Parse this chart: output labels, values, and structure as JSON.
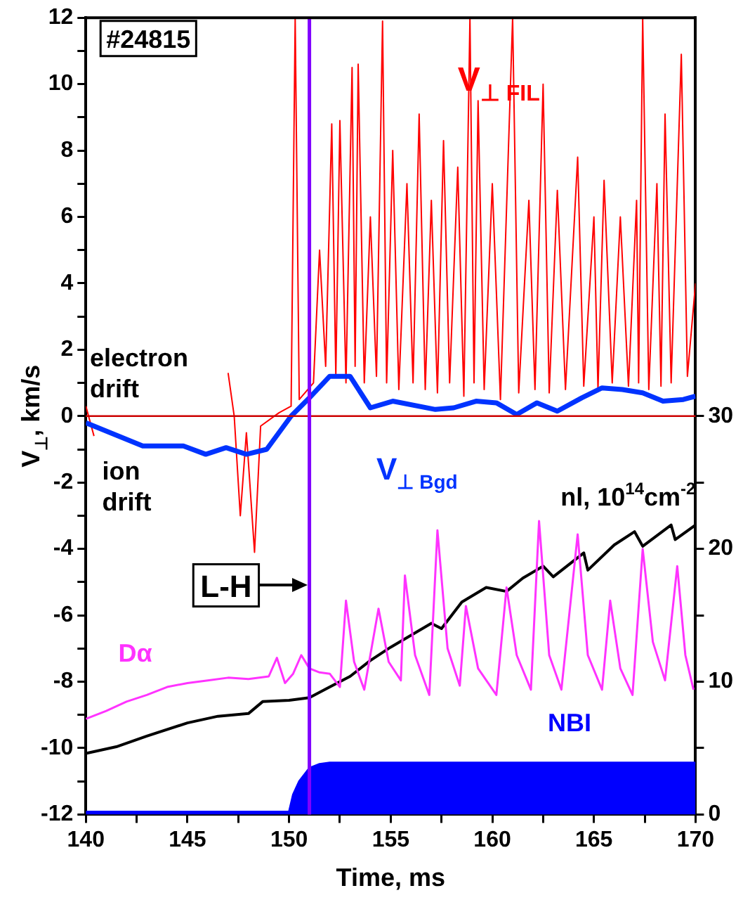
{
  "chart_data": {
    "type": "line",
    "xlabel": "Time, ms",
    "ylabel": "V$_{⊥}$, km/s",
    "xlim": [
      140,
      170
    ],
    "ylim": [
      -12,
      12
    ],
    "y2lim": [
      0,
      60
    ],
    "xticks": [
      140,
      {
        "value": 142.5,
        "label": null
      },
      145,
      {
        "value": 147.5,
        "label": null
      },
      150,
      {
        "value": 152.5,
        "label": null
      },
      155,
      {
        "value": 157.5,
        "label": null
      },
      160,
      {
        "value": 162.5,
        "label": null
      },
      165,
      {
        "value": 167.5,
        "label": null
      },
      170
    ],
    "yticks": [
      -12,
      {
        "value": -11,
        "label": null
      },
      -10,
      {
        "value": -9,
        "label": null
      },
      -8,
      {
        "value": -7,
        "label": null
      },
      -6,
      {
        "value": -5,
        "label": null
      },
      -4,
      {
        "value": -3,
        "label": null
      },
      -2,
      {
        "value": -1,
        "label": null
      },
      0,
      {
        "value": 1,
        "label": null
      },
      2,
      {
        "value": 3,
        "label": null
      },
      4,
      {
        "value": 5,
        "label": null
      },
      6,
      {
        "value": 7,
        "label": null
      },
      8,
      {
        "value": 9,
        "label": null
      },
      10,
      {
        "value": 11,
        "label": null
      },
      12
    ],
    "y2ticks": [
      0,
      {
        "value": 5,
        "label": null
      },
      10,
      {
        "value": 15,
        "label": null
      },
      20,
      {
        "value": 25,
        "label": null
      },
      30
    ],
    "grid": false,
    "legend": false,
    "marker": "none",
    "series": [
      {
        "name": "V$_{⊥ FIL}$",
        "type": "line",
        "color": "#ff0000",
        "x": [
          140,
          140.4,
          141,
          143,
          145,
          147,
          147.3,
          147.6,
          147.9,
          148.3,
          148.6,
          149.5,
          150.1,
          150.3,
          150.5,
          151.2,
          151.5,
          151.8,
          152.1,
          152.3,
          152.5,
          152.8,
          153.1,
          153.25,
          153.4,
          153.7,
          154,
          154.3,
          154.6,
          154.8,
          155.1,
          155.4,
          155.8,
          156.1,
          156.4,
          156.7,
          157,
          157.3,
          157.6,
          157.9,
          158.3,
          158.6,
          158.9,
          159.1,
          159.3,
          159.6,
          160,
          160.4,
          161,
          161.3,
          161.8,
          162.1,
          162.5,
          162.8,
          163.2,
          163.6,
          164.2,
          164.5,
          165,
          165.2,
          165.5,
          165.9,
          166.3,
          166.7,
          167.1,
          167.2,
          167.4,
          167.7,
          168.1,
          168.3,
          168.5,
          168.8,
          169.3,
          169.6,
          170
        ],
        "values": [
          0.3,
          -0.6,
          null,
          null,
          null,
          1.3,
          0,
          -3,
          -0.5,
          -4.1,
          -0.3,
          0.1,
          0.3,
          12,
          0.5,
          1,
          5,
          1.5,
          8.8,
          1.2,
          8.9,
          1,
          10.5,
          1.5,
          10.6,
          1,
          6,
          1.2,
          11.9,
          1,
          8,
          0.8,
          7,
          1,
          9.1,
          0.8,
          6.5,
          0.7,
          8.3,
          1,
          7.5,
          0.6,
          12,
          1,
          9.5,
          0.8,
          7,
          0.5,
          12,
          0.7,
          6.5,
          0.8,
          10,
          0.7,
          6.8,
          0.8,
          7.8,
          0.9,
          6,
          0.8,
          7.1,
          1,
          6,
          0.9,
          6.5,
          1,
          12,
          0.8,
          7,
          0.9,
          9.1,
          1,
          10.9,
          1.2,
          4
        ]
      },
      {
        "name": "V$_{⊥ Bgd}$",
        "type": "line",
        "color": "#0033ff",
        "x": [
          140,
          142.8,
          144.8,
          145.9,
          146.9,
          147.9,
          148.9,
          150.1,
          151,
          152,
          153,
          154,
          155.1,
          157.2,
          158.1,
          159.2,
          160.2,
          161.2,
          162.2,
          163.2,
          164.4,
          165.4,
          166.4,
          167.4,
          168.4,
          169.4,
          170
        ],
        "values": [
          -0.2,
          -0.9,
          -0.9,
          -1.15,
          -0.95,
          -1.15,
          -1,
          0,
          0.55,
          1.2,
          1.2,
          0.25,
          0.45,
          0.2,
          0.25,
          0.45,
          0.4,
          0.05,
          0.4,
          0.15,
          0.55,
          0.85,
          0.8,
          0.7,
          0.45,
          0.5,
          0.6
        ]
      },
      {
        "name": "nl, 10$^{14}$cm$^{-2}$",
        "type": "line",
        "axis": "y2",
        "color": "#000000",
        "x": [
          140,
          141.5,
          143,
          145,
          146.5,
          148,
          148.7,
          150,
          151,
          152,
          153,
          154,
          155,
          156,
          157,
          157.5,
          158.5,
          159.7,
          160.7,
          161.5,
          162.5,
          163,
          164.5,
          164.7,
          166,
          167,
          167.4,
          168.8,
          169,
          170
        ],
        "values": [
          4.6,
          5.1,
          5.9,
          6.9,
          7.4,
          7.6,
          8.5,
          8.6,
          8.8,
          9.6,
          10.4,
          11.6,
          12.6,
          13.5,
          14.4,
          14,
          16,
          17.1,
          16.8,
          17.8,
          18.7,
          17.9,
          19.7,
          18.4,
          20.3,
          21.3,
          20.2,
          21.8,
          20.7,
          21.8
        ]
      },
      {
        "name": "Dα",
        "type": "line",
        "axis": "y2",
        "color": "#ff33ff",
        "x": [
          140,
          141,
          142,
          143,
          144,
          145,
          146,
          147,
          148,
          149,
          149.4,
          149.8,
          150.2,
          150.6,
          151,
          151.5,
          152,
          152.5,
          152.8,
          153.2,
          153.7,
          154.4,
          154.9,
          155.5,
          155.7,
          156.2,
          156.9,
          157.3,
          157.8,
          158.4,
          158.7,
          159.3,
          160.2,
          160.7,
          161.2,
          161.9,
          162.3,
          162.8,
          163.4,
          164.2,
          164.7,
          165.4,
          165.8,
          166.3,
          166.9,
          167.4,
          167.9,
          168.5,
          169.1,
          169.5,
          169.9
        ],
        "values": [
          7.2,
          7.8,
          8.5,
          9,
          9.6,
          9.9,
          10.1,
          10.3,
          10.2,
          10.4,
          11.8,
          9.9,
          10.6,
          12,
          11,
          10.7,
          10.6,
          9.6,
          16.1,
          11.5,
          9.4,
          15.5,
          11.5,
          10.1,
          18,
          12,
          9,
          21.4,
          12.5,
          9.7,
          15.7,
          11,
          9,
          17.1,
          12,
          9.4,
          22.1,
          12,
          9.4,
          21.1,
          12,
          9.4,
          16.1,
          11,
          9,
          20,
          13,
          10.1,
          18.7,
          12,
          9.4
        ]
      },
      {
        "name": "NBI",
        "type": "area",
        "axis": "y2",
        "color": "#0000ff",
        "x": [
          140,
          145,
          150,
          150.2,
          150.5,
          151,
          151.5,
          152,
          155,
          160,
          165,
          170
        ],
        "values": [
          0.2,
          0.2,
          0.2,
          1.5,
          2.5,
          3.5,
          3.8,
          3.9,
          3.9,
          3.9,
          3.9,
          3.9
        ]
      }
    ],
    "ref_lines": [
      {
        "axis": "y",
        "value": 0,
        "color": "#cc0000"
      },
      {
        "axis": "x",
        "value": 151,
        "label": "L-H",
        "color": "#8000ff"
      }
    ],
    "annotations": [
      "#24815",
      "electron drift",
      "ion drift"
    ]
  }
}
